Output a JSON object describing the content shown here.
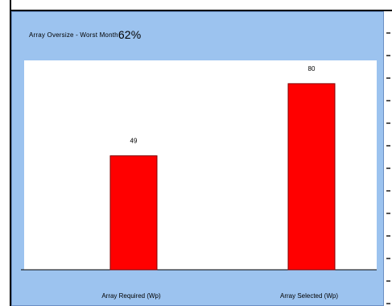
{
  "chart_data": {
    "type": "bar",
    "title": "Array Oversize  - Worst Month",
    "title_value": "62%",
    "categories": [
      "Array Required   (Wp)",
      "Array Selected   (Wp)"
    ],
    "values": [
      49,
      80
    ],
    "data_labels": [
      "49",
      "80"
    ],
    "ylim": [
      0,
      90
    ],
    "grid": false,
    "bar_color": "#ff0000",
    "bar_edge_color": "#800000",
    "plot_background": "#ffffff",
    "panel_background": "#9cc3ef"
  }
}
